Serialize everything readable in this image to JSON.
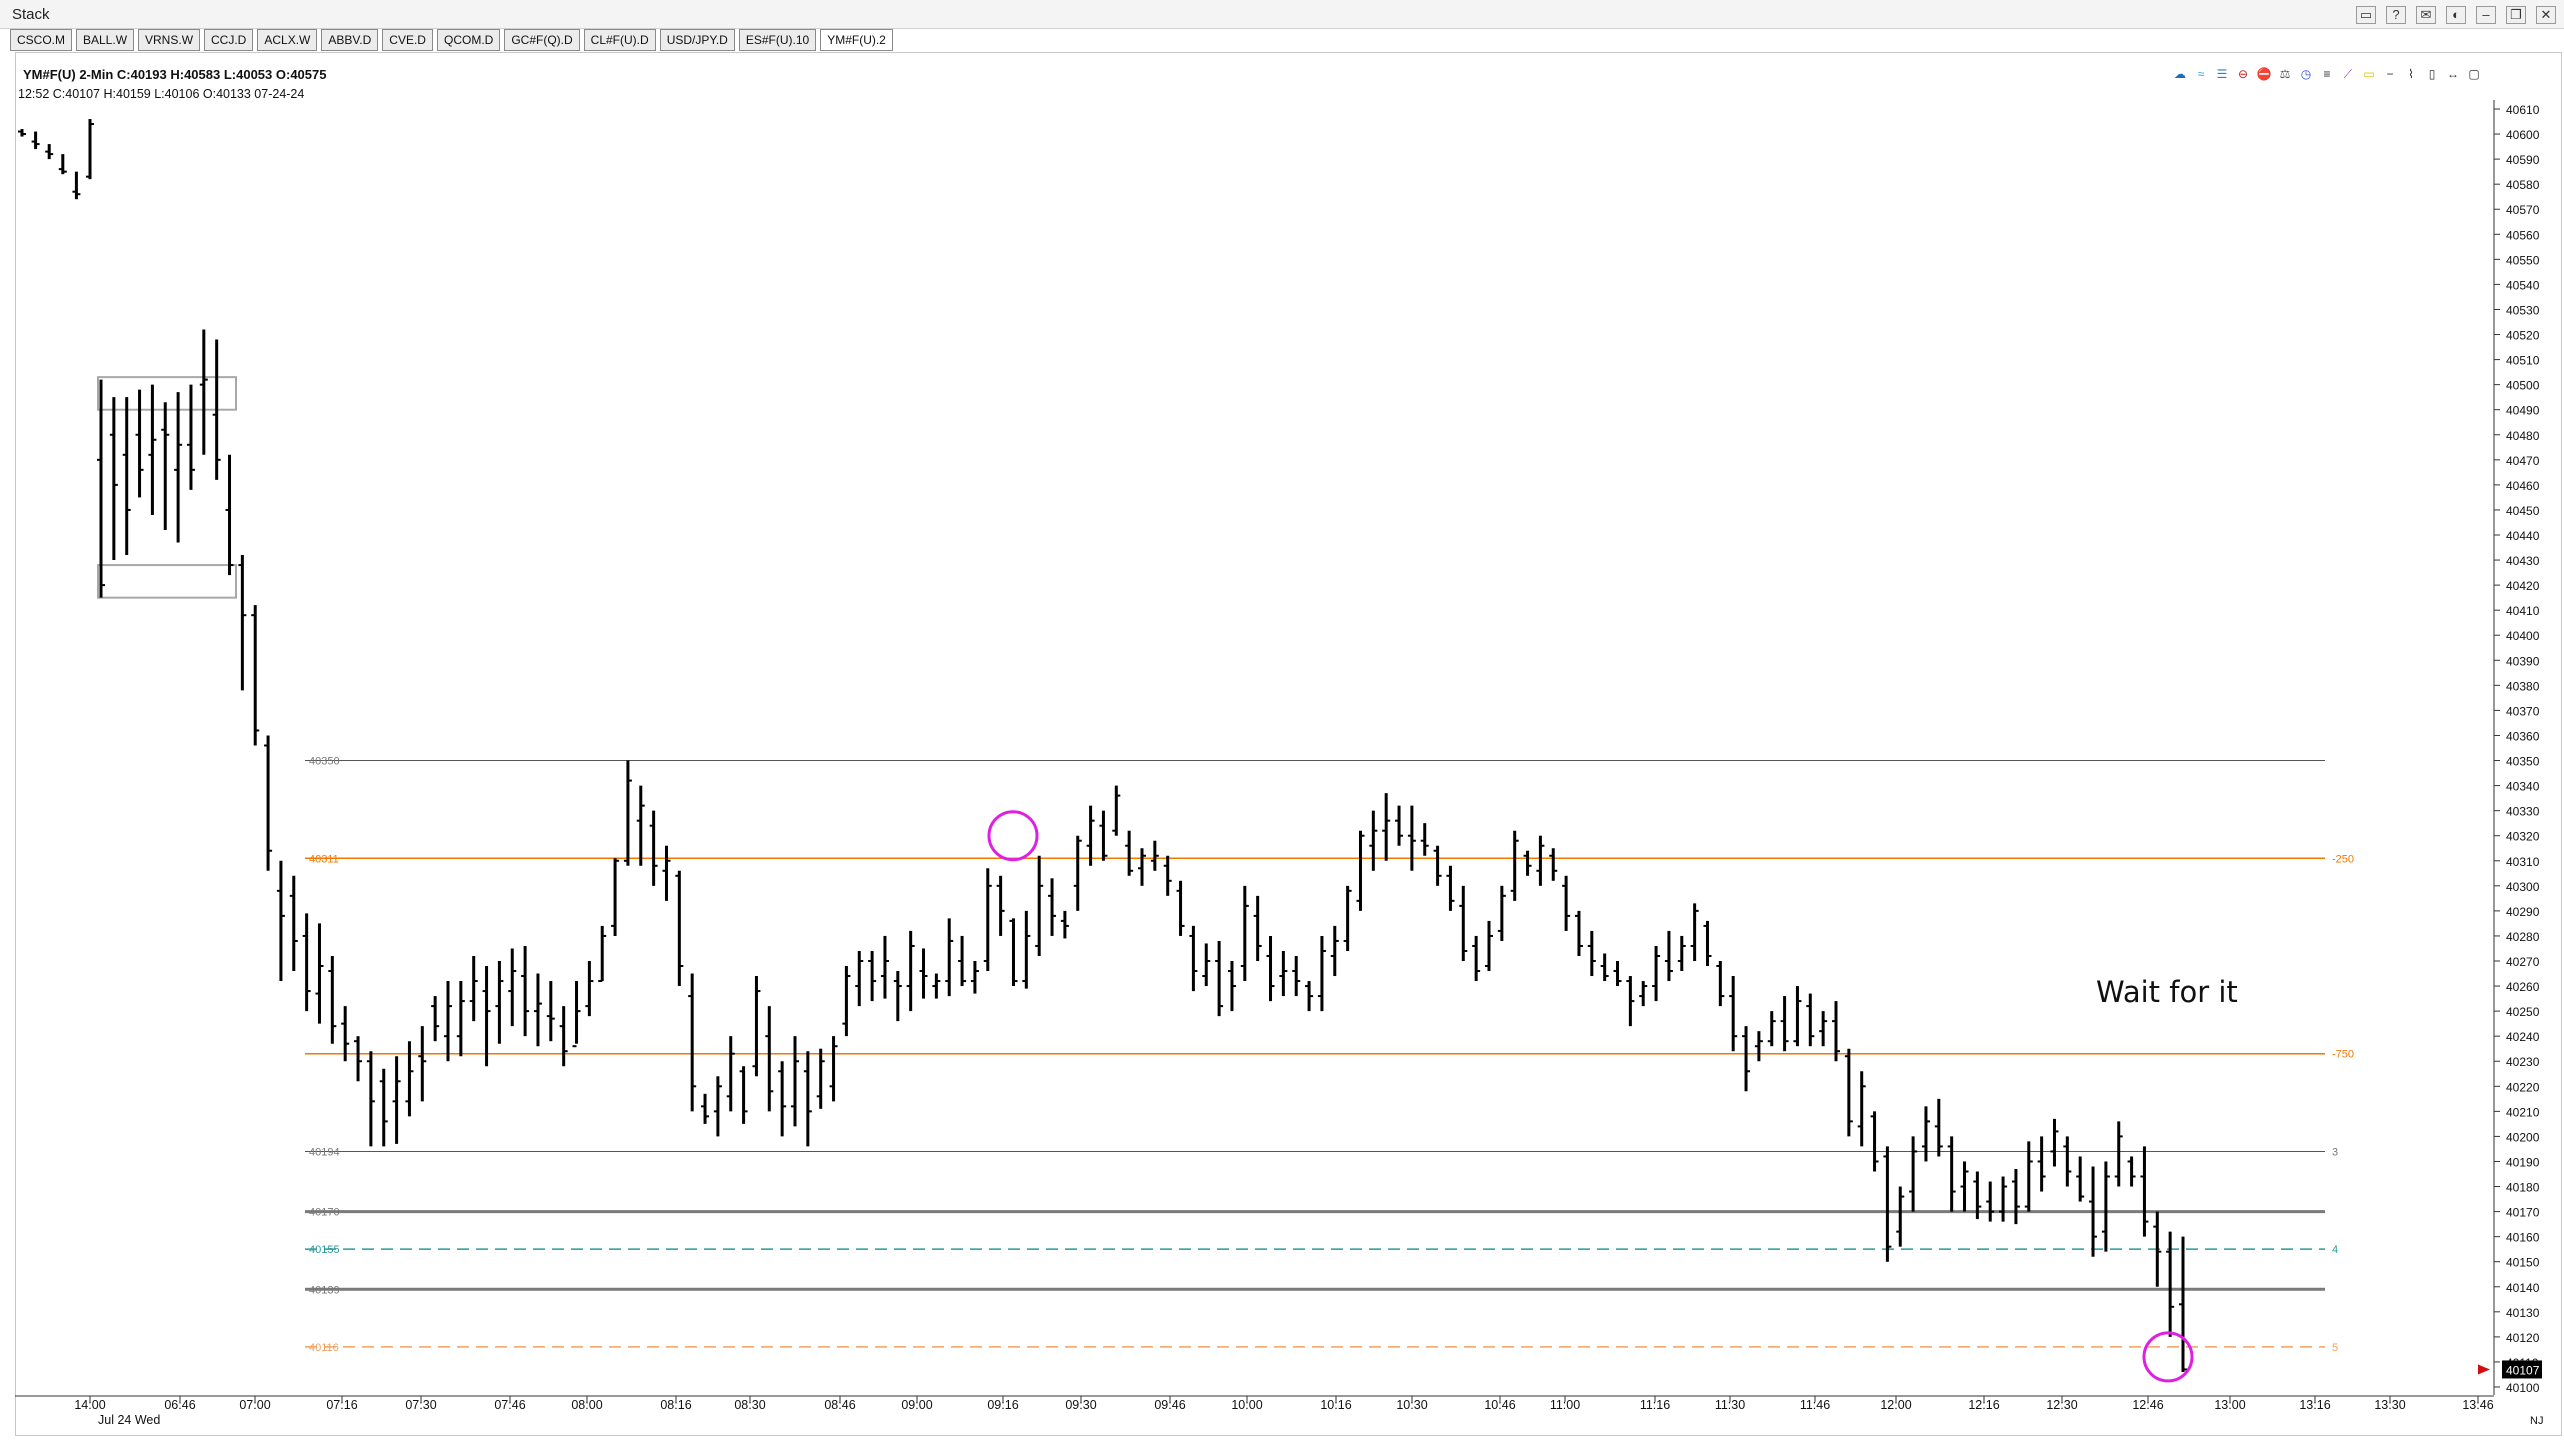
{
  "window": {
    "title": "Stack",
    "controls": [
      "▭",
      "?",
      "✉",
      "◐",
      "–",
      "❐",
      "✕"
    ]
  },
  "tabs": [
    "CSCO.M",
    "BALL.W",
    "VRNS.W",
    "CCJ.D",
    "ACLX.W",
    "ABBV.D",
    "CVE.D",
    "QCOM.D",
    "GC#F(Q).D",
    "CL#F(U).D",
    "USD/JPY.D",
    "ES#F(U).10",
    "YM#F(U).2"
  ],
  "active_tab": "YM#F(U).2",
  "header": {
    "line1": "YM#F(U)  2-Min  C:40193  H:40583  L:40053  O:40575",
    "line2": "12:52  C:40107  H:40159  L:40106  O:40133  07-24-24"
  },
  "toolbar_icons": [
    "cloud",
    "waves",
    "bars",
    "circle-minus",
    "stop",
    "scale",
    "clock",
    "lines",
    "fan",
    "square",
    "minus",
    "zigzag",
    "candle",
    "arrows-h",
    "box"
  ],
  "chart_data": {
    "type": "bar",
    "instrument": "YM#F(U)",
    "interval": "2-Min",
    "ylim": [
      40100,
      40610
    ],
    "y_ticks": [
      40610,
      40600,
      40590,
      40580,
      40570,
      40560,
      40550,
      40540,
      40530,
      40520,
      40510,
      40500,
      40490,
      40480,
      40470,
      40460,
      40450,
      40440,
      40430,
      40420,
      40410,
      40400,
      40390,
      40380,
      40370,
      40360,
      40350,
      40340,
      40330,
      40320,
      40310,
      40300,
      40290,
      40280,
      40270,
      40260,
      40250,
      40240,
      40230,
      40220,
      40210,
      40200,
      40190,
      40180,
      40170,
      40160,
      40150,
      40140,
      40130,
      40120,
      40110,
      40100
    ],
    "x_ticks": [
      "14:00",
      "06:46",
      "07:00",
      "07:16",
      "07:30",
      "07:46",
      "08:00",
      "08:16",
      "08:30",
      "08:46",
      "09:00",
      "09:16",
      "09:30",
      "09:46",
      "10:00",
      "10:16",
      "10:30",
      "10:46",
      "11:00",
      "11:16",
      "11:30",
      "11:46",
      "12:00",
      "12:16",
      "12:30",
      "12:46",
      "13:00",
      "13:16",
      "13:30",
      "13:46"
    ],
    "x_sub_label": "Jul 24 Wed",
    "last_price": "40107",
    "timezone_label": "NJ",
    "levels": [
      {
        "price": 40350,
        "left_label": "40350",
        "right_label": "",
        "color": "#555555",
        "style": "solid",
        "width": 1
      },
      {
        "price": 40311,
        "left_label": "40311",
        "right_label": "-250",
        "color": "#f07800",
        "style": "solid",
        "width": 1.5
      },
      {
        "price": 40233,
        "left_label": "",
        "right_label": "-750",
        "color": "#f07800",
        "style": "solid",
        "width": 1.5
      },
      {
        "price": 40194,
        "left_label": "40194",
        "right_label": "3",
        "color": "#555555",
        "style": "solid",
        "width": 1
      },
      {
        "price": 40170,
        "left_label": "40170",
        "right_label": "",
        "color": "#7a7a7a",
        "style": "solid",
        "width": 3
      },
      {
        "price": 40155,
        "left_label": "40155",
        "right_label": "4",
        "color": "#2a9a9a",
        "style": "dashed",
        "width": 1.5
      },
      {
        "price": 40139,
        "left_label": "40139",
        "right_label": "",
        "color": "#7a7a7a",
        "style": "solid",
        "width": 3
      },
      {
        "price": 40116,
        "left_label": "40116",
        "right_label": "5",
        "color": "#f0a060",
        "style": "dashed",
        "width": 1.5
      }
    ],
    "boxes": [
      {
        "high": 40503,
        "low": 40490
      },
      {
        "high": 40428,
        "low": 40415
      }
    ],
    "markers": [
      {
        "price": 40320,
        "time": "09:20"
      },
      {
        "price": 40112,
        "time": "12:52"
      }
    ],
    "annotation": "Wait for it",
    "session1_bars": [
      [
        40602,
        40599,
        40601,
        40600
      ],
      [
        40601,
        40594,
        40597,
        40596
      ],
      [
        40596,
        40590,
        40593,
        40592
      ],
      [
        40592,
        40584,
        40586,
        40585
      ],
      [
        40585,
        40574,
        40577,
        40576
      ],
      [
        40606,
        40582,
        40583,
        40604
      ]
    ],
    "session2_bars": [
      [
        40502,
        40415,
        40470,
        40420
      ],
      [
        40495,
        40430,
        40480,
        40460
      ],
      [
        40495,
        40432,
        40472,
        40450
      ],
      [
        40498,
        40455,
        40480,
        40466
      ],
      [
        40500,
        40448,
        40472,
        40478
      ],
      [
        40493,
        40442,
        40482,
        40480
      ],
      [
        40497,
        40437,
        40466,
        40476
      ],
      [
        40500,
        40458,
        40476,
        40466
      ],
      [
        40522,
        40472,
        40500,
        40502
      ],
      [
        40518,
        40462,
        40488,
        40470
      ],
      [
        40472,
        40424,
        40450,
        40428
      ],
      [
        40432,
        40378,
        40428,
        40408
      ],
      [
        40412,
        40356,
        40408,
        40362
      ],
      [
        40360,
        40306,
        40356,
        40314
      ],
      [
        40310,
        40262,
        40298,
        40288
      ],
      [
        40304,
        40266,
        40296,
        40278
      ],
      [
        40289,
        40250,
        40280,
        40258
      ],
      [
        40285,
        40245,
        40257,
        40268
      ],
      [
        40272,
        40237,
        40266,
        40244
      ],
      [
        40252,
        40230,
        40245,
        40237
      ],
      [
        40240,
        40222,
        40238,
        40230
      ],
      [
        40234,
        40196,
        40230,
        40214
      ],
      [
        40227,
        40196,
        40222,
        40206
      ],
      [
        40232,
        40197,
        40214,
        40222
      ],
      [
        40238,
        40208,
        40214,
        40226
      ],
      [
        40244,
        40214,
        40232,
        40230
      ],
      [
        40256,
        40238,
        40252,
        40244
      ],
      [
        40262,
        40230,
        40240,
        40252
      ],
      [
        40262,
        40232,
        40240,
        40254
      ],
      [
        40272,
        40246,
        40254,
        40262
      ],
      [
        40268,
        40228,
        40258,
        40250
      ],
      [
        40270,
        40237,
        40252,
        40262
      ],
      [
        40275,
        40244,
        40258,
        40266
      ],
      [
        40276,
        40240,
        40264,
        40250
      ],
      [
        40265,
        40236,
        40250,
        40253
      ],
      [
        40262,
        40238,
        40248,
        40247
      ],
      [
        40252,
        40228,
        40244,
        40234
      ],
      [
        40262,
        40237,
        40236,
        40250
      ],
      [
        40270,
        40248,
        40252,
        40262
      ],
      [
        40284,
        40262,
        40262,
        40280
      ],
      [
        40311,
        40280,
        40284,
        40310
      ],
      [
        40350,
        40308,
        40310,
        40342
      ],
      [
        40340,
        40308,
        40326,
        40332
      ],
      [
        40330,
        40300,
        40324,
        40308
      ],
      [
        40316,
        40294,
        40306,
        40310
      ],
      [
        40306,
        40260,
        40304,
        40268
      ],
      [
        40265,
        40210,
        40256,
        40220
      ],
      [
        40217,
        40205,
        40212,
        40208
      ],
      [
        40224,
        40200,
        40210,
        40220
      ],
      [
        40240,
        40210,
        40216,
        40233
      ],
      [
        40228,
        40205,
        40226,
        40210
      ],
      [
        40264,
        40224,
        40228,
        40258
      ],
      [
        40252,
        40210,
        40240,
        40218
      ],
      [
        40230,
        40200,
        40226,
        40212
      ],
      [
        40240,
        40204,
        40212,
        40230
      ],
      [
        40234,
        40196,
        40226,
        40210
      ],
      [
        40235,
        40211,
        40216,
        40230
      ],
      [
        40240,
        40214,
        40220,
        40236
      ],
      [
        40268,
        40240,
        40245,
        40264
      ],
      [
        40274,
        40252,
        40260,
        40270
      ],
      [
        40274,
        40254,
        40270,
        40262
      ],
      [
        40280,
        40255,
        40264,
        40270
      ],
      [
        40266,
        40246,
        40262,
        40260
      ],
      [
        40282,
        40250,
        40260,
        40276
      ],
      [
        40275,
        40255,
        40266,
        40264
      ],
      [
        40265,
        40255,
        40260,
        40262
      ],
      [
        40287,
        40256,
        40262,
        40278
      ],
      [
        40280,
        40260,
        40270,
        40262
      ],
      [
        40270,
        40257,
        40262,
        40266
      ],
      [
        40307,
        40266,
        40270,
        40300
      ],
      [
        40304,
        40280,
        40300,
        40290
      ],
      [
        40287,
        40260,
        40286,
        40262
      ],
      [
        40290,
        40259,
        40262,
        40280
      ],
      [
        40312,
        40272,
        40276,
        40300
      ],
      [
        40303,
        40280,
        40296,
        40288
      ],
      [
        40290,
        40279,
        40286,
        40284
      ],
      [
        40320,
        40290,
        40300,
        40318
      ],
      [
        40332,
        40308,
        40316,
        40326
      ],
      [
        40330,
        40310,
        40324,
        40312
      ],
      [
        40340,
        40320,
        40322,
        40336
      ],
      [
        40322,
        40304,
        40316,
        40306
      ],
      [
        40315,
        40300,
        40307,
        40312
      ],
      [
        40318,
        40306,
        40310,
        40312
      ],
      [
        40312,
        40296,
        40308,
        40302
      ],
      [
        40302,
        40280,
        40298,
        40284
      ],
      [
        40284,
        40258,
        40280,
        40266
      ],
      [
        40277,
        40260,
        40264,
        40270
      ],
      [
        40278,
        40248,
        40270,
        40252
      ],
      [
        40270,
        40250,
        40266,
        40260
      ],
      [
        40300,
        40262,
        40268,
        40292
      ],
      [
        40296,
        40270,
        40288,
        40276
      ],
      [
        40280,
        40254,
        40272,
        40260
      ],
      [
        40274,
        40256,
        40264,
        40266
      ],
      [
        40272,
        40256,
        40266,
        40262
      ],
      [
        40262,
        40250,
        40260,
        40256
      ],
      [
        40280,
        40250,
        40256,
        40274
      ],
      [
        40284,
        40264,
        40272,
        40278
      ],
      [
        40300,
        40274,
        40278,
        40298
      ],
      [
        40322,
        40290,
        40294,
        40320
      ],
      [
        40330,
        40306,
        40316,
        40322
      ],
      [
        40337,
        40310,
        40322,
        40326
      ],
      [
        40332,
        40316,
        40326,
        40320
      ],
      [
        40332,
        40306,
        40320,
        40318
      ],
      [
        40325,
        40312,
        40318,
        40316
      ],
      [
        40316,
        40300,
        40314,
        40304
      ],
      [
        40308,
        40290,
        40304,
        40294
      ],
      [
        40300,
        40270,
        40292,
        40274
      ],
      [
        40280,
        40262,
        40276,
        40266
      ],
      [
        40286,
        40266,
        40268,
        40280
      ],
      [
        40300,
        40278,
        40282,
        40296
      ],
      [
        40322,
        40294,
        40298,
        40318
      ],
      [
        40314,
        40304,
        40312,
        40308
      ],
      [
        40320,
        40300,
        40306,
        40316
      ],
      [
        40315,
        40302,
        40312,
        40306
      ],
      [
        40304,
        40282,
        40300,
        40288
      ],
      [
        40290,
        40272,
        40288,
        40276
      ],
      [
        40282,
        40264,
        40276,
        40270
      ],
      [
        40273,
        40262,
        40268,
        40264
      ],
      [
        40270,
        40260,
        40266,
        40262
      ],
      [
        40264,
        40244,
        40262,
        40254
      ],
      [
        40262,
        40252,
        40256,
        40260
      ],
      [
        40276,
        40254,
        40260,
        40272
      ],
      [
        40282,
        40262,
        40270,
        40266
      ],
      [
        40280,
        40266,
        40270,
        40276
      ],
      [
        40293,
        40270,
        40276,
        40290
      ],
      [
        40286,
        40268,
        40284,
        40272
      ],
      [
        40270,
        40252,
        40268,
        40256
      ],
      [
        40264,
        40234,
        40256,
        40240
      ],
      [
        40244,
        40218,
        40240,
        40226
      ],
      [
        40242,
        40230,
        40236,
        40238
      ],
      [
        40250,
        40236,
        40238,
        40246
      ],
      [
        40256,
        40234,
        40246,
        40238
      ],
      [
        40260,
        40236,
        40238,
        40254
      ],
      [
        40257,
        40236,
        40252,
        40240
      ],
      [
        40250,
        40236,
        40242,
        40246
      ],
      [
        40254,
        40230,
        40246,
        40234
      ],
      [
        40235,
        40200,
        40232,
        40206
      ],
      [
        40226,
        40196,
        40204,
        40220
      ],
      [
        40210,
        40186,
        40208,
        40190
      ],
      [
        40196,
        40150,
        40192,
        40156
      ],
      [
        40180,
        40156,
        40162,
        40176
      ],
      [
        40200,
        40170,
        40178,
        40194
      ],
      [
        40212,
        40190,
        40196,
        40206
      ],
      [
        40215,
        40192,
        40204,
        40196
      ],
      [
        40200,
        40170,
        40196,
        40178
      ],
      [
        40190,
        40170,
        40180,
        40186
      ],
      [
        40186,
        40167,
        40182,
        40172
      ],
      [
        40182,
        40166,
        40174,
        40170
      ],
      [
        40184,
        40166,
        40170,
        40180
      ],
      [
        40187,
        40165,
        40182,
        40172
      ],
      [
        40198,
        40170,
        40172,
        40190
      ],
      [
        40200,
        40178,
        40190,
        40184
      ],
      [
        40207,
        40188,
        40194,
        40202
      ],
      [
        40200,
        40180,
        40196,
        40186
      ],
      [
        40192,
        40174,
        40184,
        40176
      ],
      [
        40188,
        40152,
        40174,
        40160
      ],
      [
        40190,
        40154,
        40162,
        40184
      ],
      [
        40206,
        40180,
        40184,
        40200
      ],
      [
        40192,
        40180,
        40190,
        40184
      ],
      [
        40196,
        40160,
        40184,
        40166
      ],
      [
        40170,
        40140,
        40164,
        40154
      ],
      [
        40162,
        40120,
        40154,
        40132
      ],
      [
        40160,
        40106,
        40133,
        40107
      ]
    ]
  }
}
